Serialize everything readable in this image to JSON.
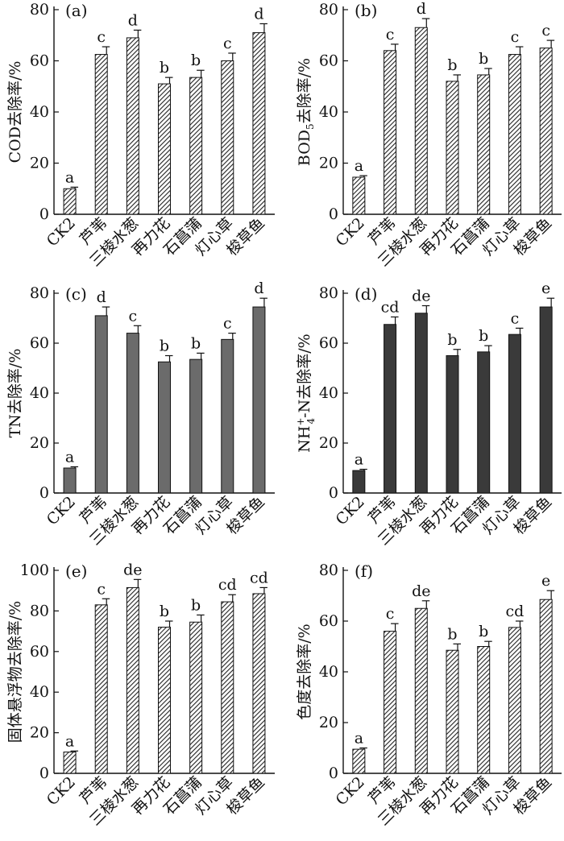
{
  "figure_title": "",
  "chart_data": [
    {
      "type": "bar",
      "panel": "(a)",
      "ylabel": "COD去除率/%",
      "categories": [
        "CK2",
        "芦苇",
        "三棱水葱",
        "再力花",
        "石菖蒲",
        "灯心草",
        "梭草鱼"
      ],
      "values": [
        10,
        62.5,
        69,
        51,
        53.5,
        60,
        71
      ],
      "errors": [
        0.6,
        3,
        3,
        2.5,
        2.8,
        3,
        3.5
      ],
      "letters": [
        "a",
        "c",
        "d",
        "b",
        "b",
        "c",
        "d"
      ],
      "ylim": [
        0,
        80
      ],
      "yticks": [
        0,
        20,
        40,
        60,
        80
      ],
      "fill": "hatched"
    },
    {
      "type": "bar",
      "panel": "(b)",
      "ylabel": "BOD5去除率/%",
      "ylabel_main": "BOD",
      "ylabel_sub": "5",
      "ylabel_rest": "去除率/%",
      "categories": [
        "CK2",
        "芦苇",
        "三棱水葱",
        "再力花",
        "石菖蒲",
        "灯心草",
        "梭草鱼"
      ],
      "values": [
        14.5,
        64,
        73,
        52,
        54.5,
        62.5,
        65
      ],
      "errors": [
        0.6,
        2.5,
        3.5,
        2.5,
        2.5,
        3,
        3
      ],
      "letters": [
        "a",
        "c",
        "d",
        "b",
        "b",
        "c",
        "c"
      ],
      "ylim": [
        0,
        80
      ],
      "yticks": [
        0,
        20,
        40,
        60,
        80
      ],
      "fill": "hatched"
    },
    {
      "type": "bar",
      "panel": "(c)",
      "ylabel": "TN去除率/%",
      "categories": [
        "CK2",
        "芦苇",
        "三棱水葱",
        "再力花",
        "石菖蒲",
        "灯心草",
        "梭草鱼"
      ],
      "values": [
        10,
        71,
        64,
        52.5,
        53.5,
        61.5,
        74.5
      ],
      "errors": [
        0.5,
        3.5,
        3,
        2.5,
        2.5,
        2.5,
        3.5
      ],
      "letters": [
        "a",
        "d",
        "c",
        "b",
        "b",
        "c",
        "d"
      ],
      "ylim": [
        0,
        80
      ],
      "yticks": [
        0,
        20,
        40,
        60,
        80
      ],
      "fill": "gray"
    },
    {
      "type": "bar",
      "panel": "(d)",
      "ylabel": "NH4+-N去除率/%",
      "ylabel_main": "NH",
      "ylabel_sub": "4",
      "ylabel_sup": "+",
      "ylabel_rest": "-N去除率/%",
      "categories": [
        "CK2",
        "芦苇",
        "三棱水葱",
        "再力花",
        "石菖蒲",
        "灯心草",
        "梭草鱼"
      ],
      "values": [
        9,
        67.5,
        72,
        55,
        56.5,
        63.5,
        74.5
      ],
      "errors": [
        0.5,
        3,
        3,
        2.5,
        2.5,
        2.5,
        3.5
      ],
      "letters": [
        "a",
        "cd",
        "de",
        "b",
        "b",
        "c",
        "e"
      ],
      "ylim": [
        0,
        80
      ],
      "yticks": [
        0,
        20,
        40,
        60,
        80
      ],
      "fill": "dark"
    },
    {
      "type": "bar",
      "panel": "(e)",
      "ylabel": "固体悬浮物去除率/%",
      "categories": [
        "CK2",
        "芦苇",
        "三棱水葱",
        "再力花",
        "石菖蒲",
        "灯心草",
        "梭草鱼"
      ],
      "values": [
        10.5,
        83,
        91.5,
        72,
        74.5,
        84.5,
        88.5
      ],
      "errors": [
        0.5,
        3,
        4,
        3,
        3.5,
        3.5,
        3
      ],
      "letters": [
        "a",
        "c",
        "de",
        "b",
        "b",
        "cd",
        "cd"
      ],
      "ylim": [
        0,
        100
      ],
      "yticks": [
        0,
        20,
        40,
        60,
        80,
        100
      ],
      "fill": "hatched"
    },
    {
      "type": "bar",
      "panel": "(f)",
      "ylabel": "色度去除率/%",
      "categories": [
        "CK2",
        "芦苇",
        "三棱水葱",
        "再力花",
        "石菖蒲",
        "灯心草",
        "梭草鱼"
      ],
      "values": [
        9.5,
        56,
        65,
        48.5,
        50,
        57.5,
        68.5
      ],
      "errors": [
        0.5,
        3,
        3,
        2.5,
        2,
        2.5,
        3.5
      ],
      "letters": [
        "a",
        "c",
        "de",
        "b",
        "b",
        "cd",
        "e"
      ],
      "ylim": [
        0,
        80
      ],
      "yticks": [
        0,
        20,
        40,
        60,
        80
      ],
      "fill": "hatched"
    }
  ]
}
